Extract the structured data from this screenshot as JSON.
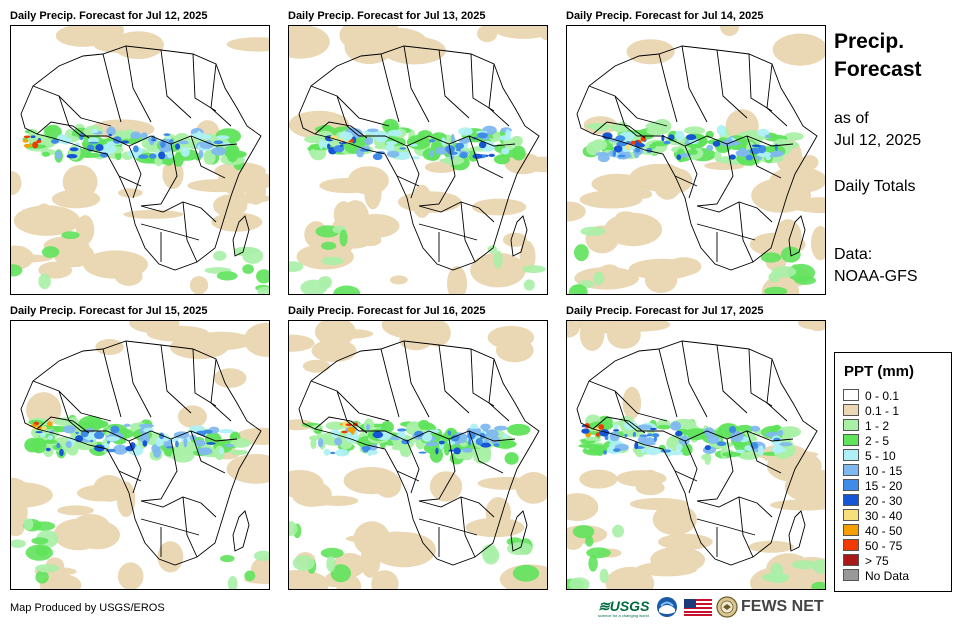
{
  "panels": [
    {
      "title": "Daily Precip. Forecast for Jul 12, 2025",
      "seed": 11
    },
    {
      "title": "Daily Precip. Forecast for Jul 13, 2025",
      "seed": 23
    },
    {
      "title": "Daily Precip. Forecast for Jul 14, 2025",
      "seed": 37
    },
    {
      "title": "Daily Precip. Forecast for Jul 15, 2025",
      "seed": 41
    },
    {
      "title": "Daily Precip. Forecast for Jul 16, 2025",
      "seed": 53
    },
    {
      "title": "Daily Precip. Forecast for Jul 17, 2025",
      "seed": 67
    }
  ],
  "sidebar": {
    "title_line1": "Precip.",
    "title_line2": "Forecast",
    "as_of_label": "as of",
    "as_of_date": "Jul 12, 2025",
    "totals_label": "Daily Totals",
    "data_label": "Data:",
    "data_source": "NOAA-GFS"
  },
  "legend": {
    "title": "PPT (mm)",
    "items": [
      {
        "label": "0 - 0.1",
        "color": "#ffffff"
      },
      {
        "label": "0.1 - 1",
        "color": "#ead7b4"
      },
      {
        "label": "1 - 2",
        "color": "#a9f0a7"
      },
      {
        "label": "2 - 5",
        "color": "#5fe35b"
      },
      {
        "label": "5 - 10",
        "color": "#aef0f5"
      },
      {
        "label": "10 - 15",
        "color": "#7fb8f0"
      },
      {
        "label": "15 - 20",
        "color": "#3f8ce8"
      },
      {
        "label": "20 - 30",
        "color": "#1456d6"
      },
      {
        "label": "30 - 40",
        "color": "#f7df7c"
      },
      {
        "label": "40 - 50",
        "color": "#f5a000"
      },
      {
        "label": "50 - 75",
        "color": "#f03a00"
      },
      {
        "label": "> 75",
        "color": "#a81a1a"
      },
      {
        "label": "No Data",
        "color": "#999999"
      }
    ]
  },
  "footer": {
    "credit": "Map Produced by USGS/EROS",
    "usgs_logo": "USGS",
    "usgs_tagline": "science for a changing world",
    "fews_logo": "FEWS NET"
  }
}
